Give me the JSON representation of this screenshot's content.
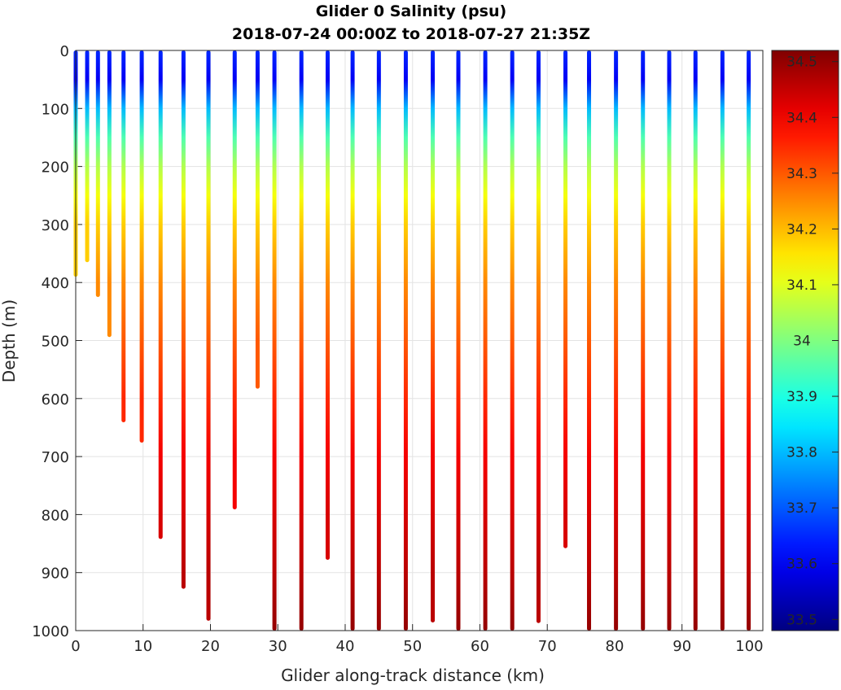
{
  "chart_data": {
    "type": "scatter",
    "title": "Glider 0 Salinity (psu)",
    "subtitle": "2018-07-24 00:00Z to 2018-07-27 21:35Z",
    "xlabel": "Glider along-track distance (km)",
    "ylabel": "Depth (m)",
    "xlim": [
      0,
      102
    ],
    "ylim": [
      1000,
      0
    ],
    "xticks": [
      "0",
      "10",
      "20",
      "30",
      "40",
      "50",
      "60",
      "70",
      "80",
      "90",
      "100"
    ],
    "yticks": [
      "0",
      "100",
      "200",
      "300",
      "400",
      "500",
      "600",
      "700",
      "800",
      "900",
      "1000"
    ],
    "grid": true,
    "colorbar": {
      "label_ticks": [
        "33.5",
        "33.6",
        "33.7",
        "33.8",
        "33.9",
        "34",
        "34.1",
        "34.2",
        "34.3",
        "34.4",
        "34.5"
      ],
      "clim": [
        33.48,
        34.52
      ],
      "colormap": "jet"
    },
    "salinity_profile": {
      "depth_m": [
        0,
        50,
        100,
        150,
        200,
        250,
        300,
        400,
        500,
        600,
        700,
        800,
        900,
        1000
      ],
      "salinity_psu": [
        33.65,
        33.6,
        33.8,
        33.95,
        34.05,
        34.12,
        34.18,
        34.25,
        34.3,
        34.35,
        34.4,
        34.43,
        34.46,
        34.5
      ]
    },
    "profiles": [
      {
        "distance_km": 0,
        "max_depth_m": 390
      },
      {
        "distance_km": 1.7,
        "max_depth_m": 365
      },
      {
        "distance_km": 3.3,
        "max_depth_m": 425
      },
      {
        "distance_km": 5.0,
        "max_depth_m": 494
      },
      {
        "distance_km": 7.1,
        "max_depth_m": 641
      },
      {
        "distance_km": 9.8,
        "max_depth_m": 676
      },
      {
        "distance_km": 12.6,
        "max_depth_m": 842
      },
      {
        "distance_km": 16.0,
        "max_depth_m": 928
      },
      {
        "distance_km": 19.7,
        "max_depth_m": 983
      },
      {
        "distance_km": 23.6,
        "max_depth_m": 791
      },
      {
        "distance_km": 27.0,
        "max_depth_m": 583
      },
      {
        "distance_km": 29.5,
        "max_depth_m": 1000
      },
      {
        "distance_km": 33.5,
        "max_depth_m": 1000
      },
      {
        "distance_km": 37.4,
        "max_depth_m": 878
      },
      {
        "distance_km": 41.1,
        "max_depth_m": 1000
      },
      {
        "distance_km": 45.0,
        "max_depth_m": 1000
      },
      {
        "distance_km": 49.0,
        "max_depth_m": 1000
      },
      {
        "distance_km": 53.0,
        "max_depth_m": 986
      },
      {
        "distance_km": 56.8,
        "max_depth_m": 1000
      },
      {
        "distance_km": 60.8,
        "max_depth_m": 1000
      },
      {
        "distance_km": 64.8,
        "max_depth_m": 1000
      },
      {
        "distance_km": 68.7,
        "max_depth_m": 987
      },
      {
        "distance_km": 72.7,
        "max_depth_m": 858
      },
      {
        "distance_km": 76.2,
        "max_depth_m": 1000
      },
      {
        "distance_km": 80.2,
        "max_depth_m": 1000
      },
      {
        "distance_km": 84.2,
        "max_depth_m": 1000
      },
      {
        "distance_km": 88.1,
        "max_depth_m": 1000
      },
      {
        "distance_km": 92.0,
        "max_depth_m": 1000
      },
      {
        "distance_km": 96.0,
        "max_depth_m": 1000
      },
      {
        "distance_km": 99.9,
        "max_depth_m": 1000
      }
    ]
  }
}
